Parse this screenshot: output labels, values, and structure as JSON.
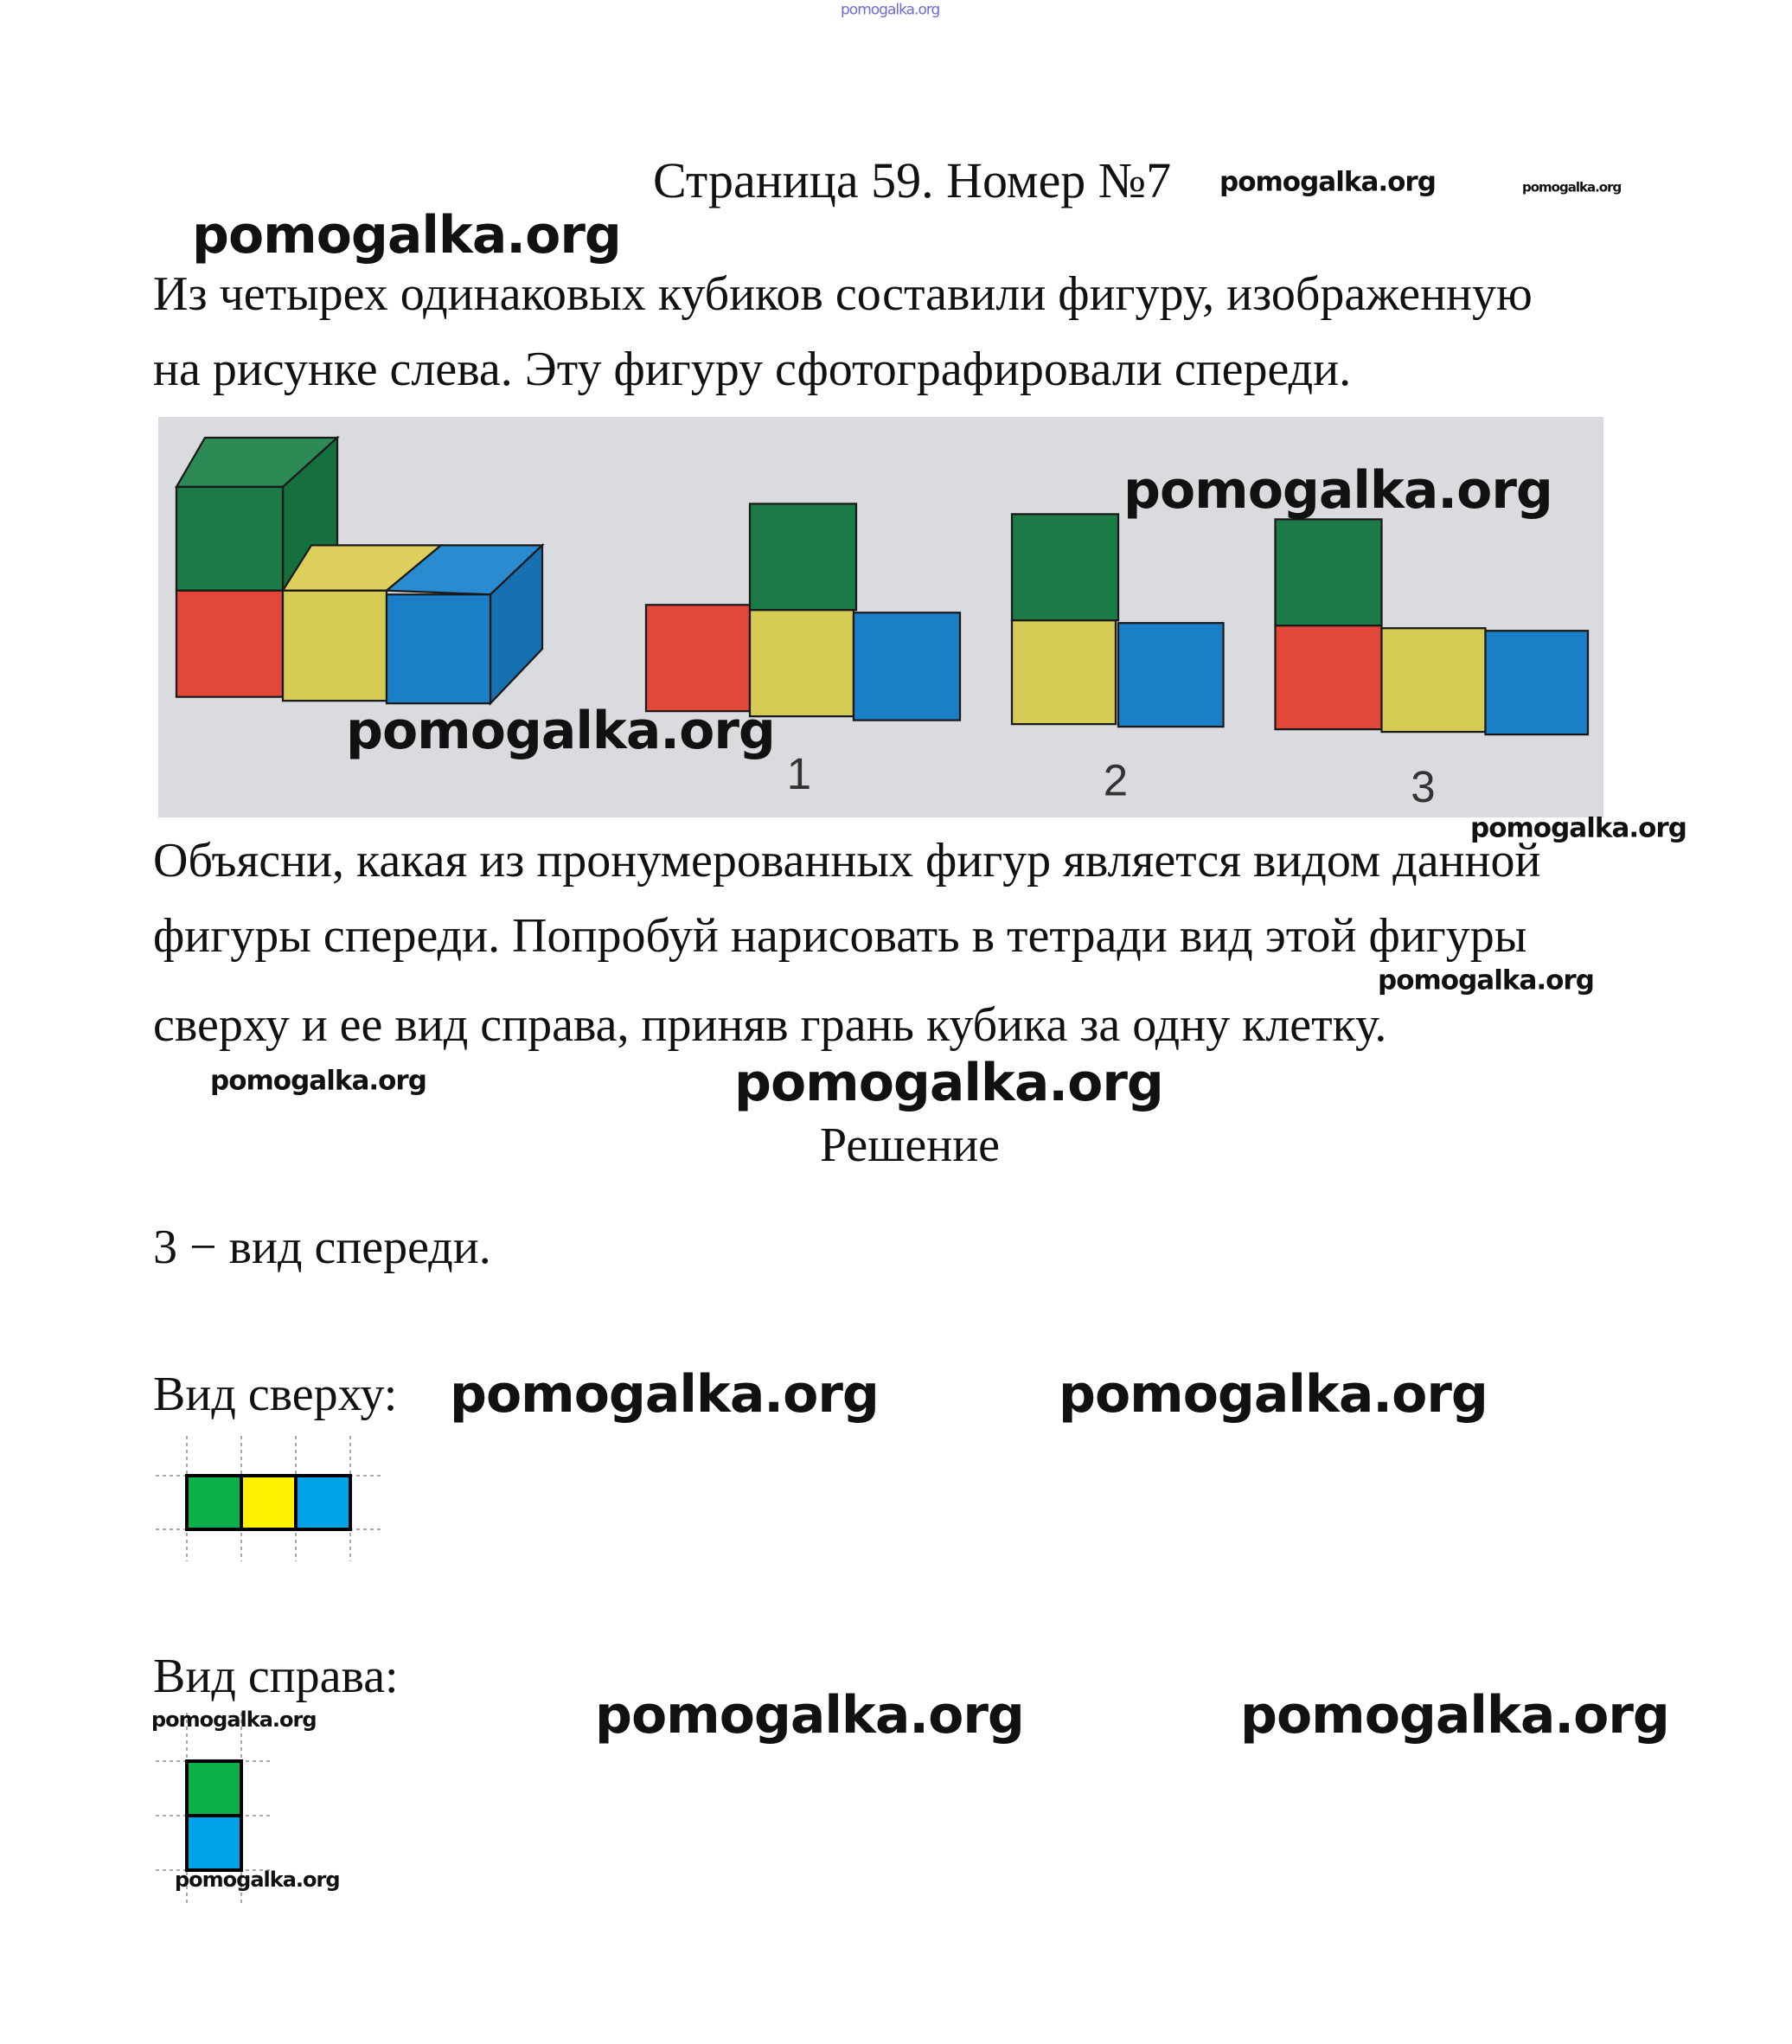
{
  "header": {
    "title": "Страница 59. Номер №7"
  },
  "task": {
    "lines": [
      "Из четырех одинаковых кубиков составили фигуру, изображенную",
      "на рисунке слева. Эту фигуру сфотографировали спереди."
    ],
    "question_lines": [
      "Объясни, какая из пронумерованных фигур является видом данной",
      "фигуры спереди. Попробуй нарисовать в тетради вид этой фигуры",
      "сверху и ее вид справа, приняв грань кубика за одну клетку."
    ]
  },
  "figure": {
    "option_labels": [
      "1",
      "2",
      "3"
    ],
    "colors": {
      "green": "#1b7a46",
      "red": "#e2473a",
      "yellow": "#d6cb55",
      "blue": "#1a7fc6",
      "background": "#d9dbde"
    }
  },
  "solution": {
    "heading": "Решение",
    "answer": "3 − вид спереди.",
    "top_view_label": "Вид сверху:",
    "top_view_cells": [
      "green",
      "yellow",
      "blue"
    ],
    "right_view_label": "Вид справа:",
    "right_view_cells": [
      "green",
      "blue"
    ],
    "cell_colors": {
      "green": "#0bb04a",
      "yellow": "#fff200",
      "blue": "#00a2e8"
    }
  },
  "watermark": "pomogalka.org"
}
